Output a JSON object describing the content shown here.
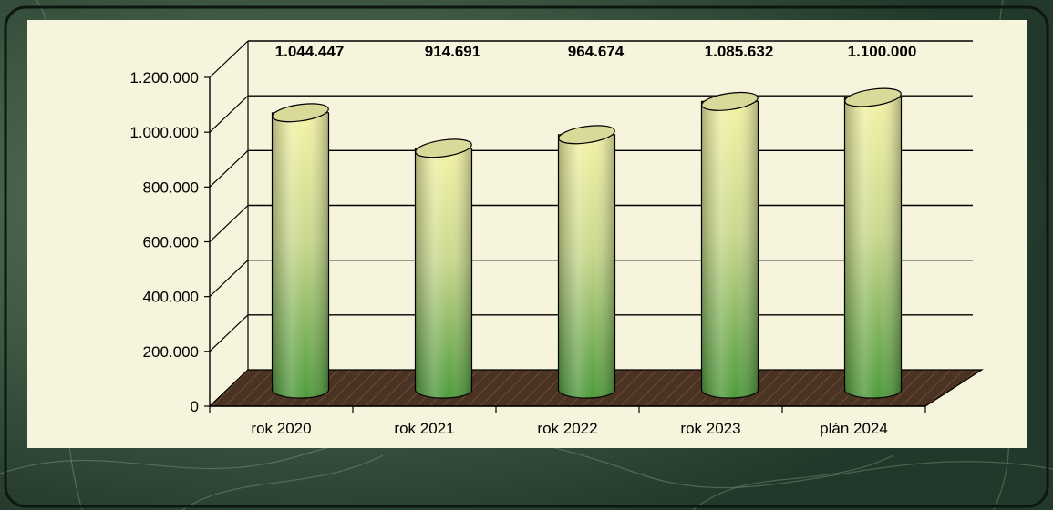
{
  "colors": {
    "marble_dark": "#22382a",
    "marble_light": "#5f7f62",
    "panel": "#f6f4dc",
    "floor": "#4a3322",
    "cylinder_top": "#f3f1a4",
    "cylinder_bottom": "#4f9a3c",
    "grid": "#000000"
  },
  "chart_data": {
    "type": "bar",
    "style": "3d-cylinder",
    "categories": [
      "rok 2020",
      "rok 2021",
      "rok 2022",
      "rok 2023",
      "plán 2024"
    ],
    "values": [
      1044447,
      914691,
      964674,
      1085632,
      1100000
    ],
    "value_labels": [
      "1.044.447",
      "914.691",
      "964.674",
      "1.085.632",
      "1.100.000"
    ],
    "y_ticks": [
      "0",
      "200.000",
      "400.000",
      "600.000",
      "800.000",
      "1.000.000",
      "1.200.000"
    ],
    "y_tick_values": [
      0,
      200000,
      400000,
      600000,
      800000,
      1000000,
      1200000
    ],
    "ylim": [
      0,
      1200000
    ],
    "grid": true,
    "legend": "none"
  }
}
